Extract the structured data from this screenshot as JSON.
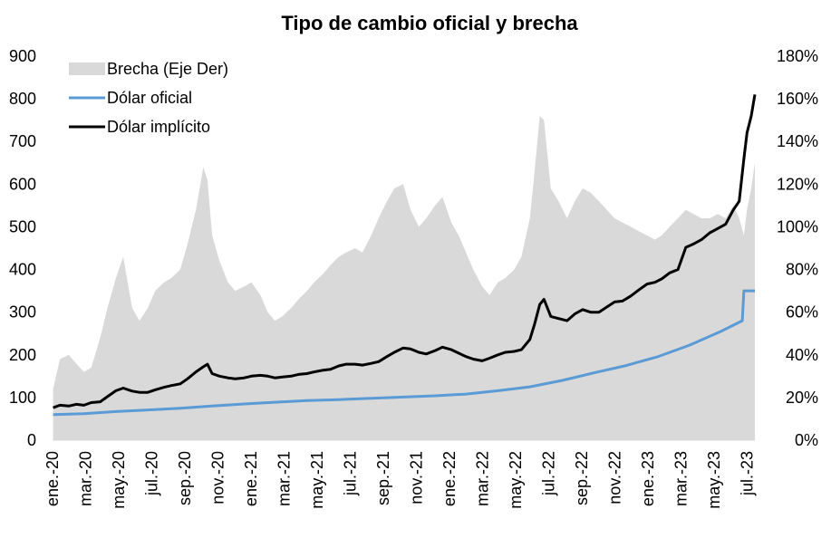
{
  "chart_data": {
    "type": "area",
    "title": "Tipo de cambio oficial y brecha",
    "xlabel": "",
    "ylabel": "",
    "y_left": {
      "lim": [
        0,
        900
      ],
      "ticks": [
        "0",
        "100",
        "200",
        "300",
        "400",
        "500",
        "600",
        "700",
        "800",
        "900"
      ]
    },
    "y_right": {
      "lim": [
        0,
        180
      ],
      "ticks": [
        "0%",
        "20%",
        "40%",
        "60%",
        "80%",
        "100%",
        "120%",
        "140%",
        "160%",
        "180%"
      ]
    },
    "x_ticks": [
      "ene.-20",
      "mar.-20",
      "may.-20",
      "jul.-20",
      "sep.-20",
      "nov.-20",
      "ene.-21",
      "mar.-21",
      "may.-21",
      "jul.-21",
      "sep.-21",
      "nov.-21",
      "ene.-22",
      "mar.-22",
      "may.-22",
      "jul.-22",
      "sep.-22",
      "nov.-22",
      "ene.-23",
      "mar.-23",
      "may.-23",
      "jul.-23"
    ],
    "x_start": "2020-01-01",
    "legend": {
      "position": "top-left",
      "entries": [
        "Brecha (Eje Der)",
        "Dólar oficial",
        "Dólar implícito"
      ]
    },
    "colors": {
      "brecha": "#d9d9d9",
      "oficial": "#5b9bd5",
      "implicito": "#000000"
    },
    "series": [
      {
        "name": "Brecha (Eje Der)",
        "axis": "right",
        "style": "area",
        "points": [
          [
            "2020-01-02",
            24
          ],
          [
            "2020-01-15",
            38
          ],
          [
            "2020-02-01",
            40
          ],
          [
            "2020-02-15",
            36
          ],
          [
            "2020-03-01",
            32
          ],
          [
            "2020-03-15",
            34
          ],
          [
            "2020-04-01",
            48
          ],
          [
            "2020-04-15",
            62
          ],
          [
            "2020-05-01",
            76
          ],
          [
            "2020-05-15",
            86
          ],
          [
            "2020-06-01",
            62
          ],
          [
            "2020-06-15",
            56
          ],
          [
            "2020-07-01",
            62
          ],
          [
            "2020-07-15",
            70
          ],
          [
            "2020-08-01",
            74
          ],
          [
            "2020-08-15",
            76
          ],
          [
            "2020-09-01",
            80
          ],
          [
            "2020-09-15",
            92
          ],
          [
            "2020-10-01",
            108
          ],
          [
            "2020-10-08",
            118
          ],
          [
            "2020-10-15",
            128
          ],
          [
            "2020-10-23",
            122
          ],
          [
            "2020-11-01",
            96
          ],
          [
            "2020-11-15",
            84
          ],
          [
            "2020-12-01",
            74
          ],
          [
            "2020-12-15",
            70
          ],
          [
            "2021-01-01",
            72
          ],
          [
            "2021-01-15",
            74
          ],
          [
            "2021-02-01",
            68
          ],
          [
            "2021-02-15",
            60
          ],
          [
            "2021-03-01",
            56
          ],
          [
            "2021-03-15",
            58
          ],
          [
            "2021-04-01",
            62
          ],
          [
            "2021-04-15",
            66
          ],
          [
            "2021-05-01",
            70
          ],
          [
            "2021-05-15",
            74
          ],
          [
            "2021-06-01",
            78
          ],
          [
            "2021-06-15",
            82
          ],
          [
            "2021-07-01",
            86
          ],
          [
            "2021-07-15",
            88
          ],
          [
            "2021-08-01",
            90
          ],
          [
            "2021-08-15",
            88
          ],
          [
            "2021-09-01",
            96
          ],
          [
            "2021-09-15",
            104
          ],
          [
            "2021-10-01",
            112
          ],
          [
            "2021-10-15",
            118
          ],
          [
            "2021-11-01",
            120
          ],
          [
            "2021-11-15",
            108
          ],
          [
            "2021-12-01",
            100
          ],
          [
            "2021-12-15",
            104
          ],
          [
            "2022-01-01",
            110
          ],
          [
            "2022-01-15",
            114
          ],
          [
            "2022-02-01",
            102
          ],
          [
            "2022-02-15",
            96
          ],
          [
            "2022-03-01",
            88
          ],
          [
            "2022-03-15",
            80
          ],
          [
            "2022-04-01",
            72
          ],
          [
            "2022-04-15",
            68
          ],
          [
            "2022-05-01",
            74
          ],
          [
            "2022-05-15",
            76
          ],
          [
            "2022-06-01",
            80
          ],
          [
            "2022-06-15",
            86
          ],
          [
            "2022-07-01",
            104
          ],
          [
            "2022-07-10",
            126
          ],
          [
            "2022-07-20",
            152
          ],
          [
            "2022-07-28",
            150
          ],
          [
            "2022-08-10",
            118
          ],
          [
            "2022-08-25",
            112
          ],
          [
            "2022-09-10",
            104
          ],
          [
            "2022-09-25",
            112
          ],
          [
            "2022-10-10",
            118
          ],
          [
            "2022-10-25",
            116
          ],
          [
            "2022-11-10",
            112
          ],
          [
            "2022-11-25",
            108
          ],
          [
            "2022-12-10",
            104
          ],
          [
            "2022-12-25",
            102
          ],
          [
            "2023-01-10",
            100
          ],
          [
            "2023-01-25",
            98
          ],
          [
            "2023-02-10",
            96
          ],
          [
            "2023-02-25",
            94
          ],
          [
            "2023-03-10",
            96
          ],
          [
            "2023-03-25",
            100
          ],
          [
            "2023-04-10",
            104
          ],
          [
            "2023-04-25",
            108
          ],
          [
            "2023-05-10",
            106
          ],
          [
            "2023-05-25",
            104
          ],
          [
            "2023-06-10",
            104
          ],
          [
            "2023-06-25",
            106
          ],
          [
            "2023-07-10",
            104
          ],
          [
            "2023-07-25",
            110
          ],
          [
            "2023-08-05",
            104
          ],
          [
            "2023-08-14",
            96
          ],
          [
            "2023-08-20",
            108
          ],
          [
            "2023-08-28",
            118
          ],
          [
            "2023-09-04",
            130
          ]
        ]
      },
      {
        "name": "Dólar oficial",
        "axis": "left",
        "style": "line",
        "points": [
          [
            "2020-01-02",
            60
          ],
          [
            "2020-03-01",
            62
          ],
          [
            "2020-05-01",
            67
          ],
          [
            "2020-07-01",
            71
          ],
          [
            "2020-09-01",
            75
          ],
          [
            "2020-11-01",
            80
          ],
          [
            "2021-01-01",
            85
          ],
          [
            "2021-03-01",
            89
          ],
          [
            "2021-05-01",
            93
          ],
          [
            "2021-07-01",
            95
          ],
          [
            "2021-09-01",
            98
          ],
          [
            "2021-11-01",
            101
          ],
          [
            "2022-01-01",
            104
          ],
          [
            "2022-03-01",
            108
          ],
          [
            "2022-05-01",
            116
          ],
          [
            "2022-07-01",
            125
          ],
          [
            "2022-09-01",
            140
          ],
          [
            "2022-11-01",
            158
          ],
          [
            "2023-01-01",
            175
          ],
          [
            "2023-03-01",
            195
          ],
          [
            "2023-05-01",
            222
          ],
          [
            "2023-07-01",
            255
          ],
          [
            "2023-08-11",
            280
          ],
          [
            "2023-08-14",
            350
          ],
          [
            "2023-09-04",
            350
          ]
        ]
      },
      {
        "name": "Dólar implícito",
        "axis": "left",
        "style": "line",
        "points": [
          [
            "2020-01-02",
            76
          ],
          [
            "2020-01-15",
            82
          ],
          [
            "2020-02-01",
            80
          ],
          [
            "2020-02-15",
            84
          ],
          [
            "2020-03-01",
            82
          ],
          [
            "2020-03-15",
            88
          ],
          [
            "2020-04-01",
            90
          ],
          [
            "2020-04-15",
            102
          ],
          [
            "2020-05-01",
            116
          ],
          [
            "2020-05-15",
            122
          ],
          [
            "2020-06-01",
            115
          ],
          [
            "2020-06-15",
            112
          ],
          [
            "2020-07-01",
            112
          ],
          [
            "2020-07-15",
            118
          ],
          [
            "2020-08-01",
            124
          ],
          [
            "2020-08-15",
            128
          ],
          [
            "2020-09-01",
            132
          ],
          [
            "2020-09-15",
            144
          ],
          [
            "2020-10-01",
            160
          ],
          [
            "2020-10-15",
            172
          ],
          [
            "2020-10-23",
            178
          ],
          [
            "2020-11-01",
            156
          ],
          [
            "2020-11-15",
            150
          ],
          [
            "2020-12-01",
            146
          ],
          [
            "2020-12-15",
            144
          ],
          [
            "2021-01-01",
            146
          ],
          [
            "2021-01-15",
            150
          ],
          [
            "2021-02-01",
            152
          ],
          [
            "2021-02-15",
            150
          ],
          [
            "2021-03-01",
            146
          ],
          [
            "2021-03-15",
            148
          ],
          [
            "2021-04-01",
            150
          ],
          [
            "2021-04-15",
            154
          ],
          [
            "2021-05-01",
            156
          ],
          [
            "2021-05-15",
            160
          ],
          [
            "2021-06-01",
            164
          ],
          [
            "2021-06-15",
            166
          ],
          [
            "2021-07-01",
            174
          ],
          [
            "2021-07-15",
            178
          ],
          [
            "2021-08-01",
            178
          ],
          [
            "2021-08-15",
            176
          ],
          [
            "2021-09-01",
            180
          ],
          [
            "2021-09-15",
            184
          ],
          [
            "2021-10-01",
            196
          ],
          [
            "2021-10-15",
            206
          ],
          [
            "2021-11-01",
            216
          ],
          [
            "2021-11-15",
            214
          ],
          [
            "2021-12-01",
            206
          ],
          [
            "2021-12-15",
            202
          ],
          [
            "2022-01-01",
            210
          ],
          [
            "2022-01-15",
            218
          ],
          [
            "2022-02-01",
            212
          ],
          [
            "2022-02-15",
            204
          ],
          [
            "2022-03-01",
            196
          ],
          [
            "2022-03-15",
            190
          ],
          [
            "2022-04-01",
            186
          ],
          [
            "2022-04-15",
            192
          ],
          [
            "2022-05-01",
            200
          ],
          [
            "2022-05-15",
            206
          ],
          [
            "2022-06-01",
            208
          ],
          [
            "2022-06-15",
            212
          ],
          [
            "2022-07-01",
            236
          ],
          [
            "2022-07-10",
            272
          ],
          [
            "2022-07-20",
            318
          ],
          [
            "2022-07-28",
            330
          ],
          [
            "2022-08-10",
            290
          ],
          [
            "2022-08-25",
            285
          ],
          [
            "2022-09-10",
            280
          ],
          [
            "2022-09-25",
            296
          ],
          [
            "2022-10-10",
            306
          ],
          [
            "2022-10-25",
            300
          ],
          [
            "2022-11-10",
            300
          ],
          [
            "2022-11-25",
            312
          ],
          [
            "2022-12-10",
            324
          ],
          [
            "2022-12-25",
            326
          ],
          [
            "2023-01-10",
            338
          ],
          [
            "2023-01-25",
            352
          ],
          [
            "2023-02-10",
            366
          ],
          [
            "2023-02-25",
            370
          ],
          [
            "2023-03-10",
            378
          ],
          [
            "2023-03-25",
            392
          ],
          [
            "2023-04-10",
            400
          ],
          [
            "2023-04-25",
            452
          ],
          [
            "2023-05-10",
            460
          ],
          [
            "2023-05-25",
            470
          ],
          [
            "2023-06-10",
            486
          ],
          [
            "2023-06-25",
            496
          ],
          [
            "2023-07-10",
            506
          ],
          [
            "2023-07-25",
            540
          ],
          [
            "2023-08-05",
            560
          ],
          [
            "2023-08-14",
            660
          ],
          [
            "2023-08-20",
            720
          ],
          [
            "2023-08-28",
            760
          ],
          [
            "2023-09-04",
            810
          ]
        ]
      }
    ]
  }
}
